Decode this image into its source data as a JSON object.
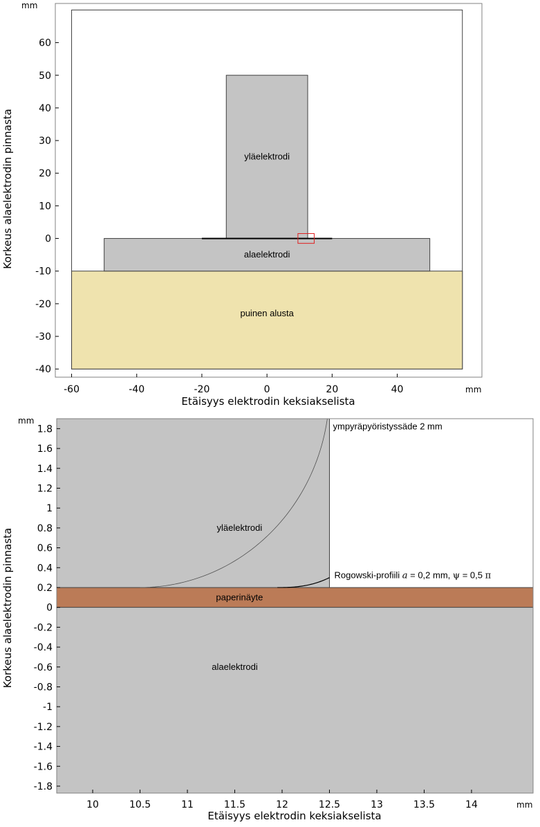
{
  "chart_data": [
    {
      "type": "diagram",
      "title": "",
      "x_unit": "mm",
      "y_unit": "mm",
      "xlabel": "Etäisyys elektrodin keksiakselista",
      "ylabel": "Korkeus alaelektrodin pinnasta",
      "xlim": [
        -65,
        66
      ],
      "ylim": [
        -42.5,
        72
      ],
      "x_ticks": [
        "-60",
        "-40",
        "-20",
        "0",
        "20",
        "40"
      ],
      "x_tick_values": [
        -60,
        -40,
        -20,
        0,
        20,
        40
      ],
      "y_ticks": [
        "60",
        "50",
        "40",
        "30",
        "20",
        "10",
        "0",
        "-10",
        "-20",
        "-30",
        "-40"
      ],
      "y_tick_values": [
        60,
        50,
        40,
        30,
        20,
        10,
        0,
        -10,
        -20,
        -30,
        -40
      ],
      "regions": {
        "domain": {
          "x": [
            -60,
            60
          ],
          "y": [
            -40,
            70
          ]
        },
        "upper_electrode": {
          "x": [
            -12.5,
            12.5
          ],
          "y": [
            0,
            50
          ]
        },
        "lower_electrode": {
          "x": [
            -50,
            50
          ],
          "y": [
            -10,
            0
          ]
        },
        "base": {
          "x": [
            -60,
            60
          ],
          "y": [
            -40,
            -10
          ]
        },
        "paper_line": {
          "x": [
            -20,
            20
          ],
          "y": 0
        },
        "zoom_box": {
          "x": [
            9.5,
            14.5
          ],
          "y": [
            -1.5,
            1.5
          ]
        }
      },
      "labels": {
        "upper_electrode": "yläelektrodi",
        "lower_electrode": "alaelektrodi",
        "base": "puinen alusta"
      },
      "colors": {
        "electrode": "#c4c4c4",
        "base": "#efe3ae",
        "zoom_box": "#e02020",
        "domain": "#ffffff"
      }
    },
    {
      "type": "diagram",
      "title": "",
      "x_unit": "mm",
      "y_unit": "mm",
      "xlabel": "Etäisyys elektrodin keksiakselista",
      "ylabel": "Korkeus alaelektrodin pinnasta",
      "xlim": [
        9.62,
        14.65
      ],
      "ylim": [
        -1.87,
        1.9
      ],
      "x_ticks": [
        "10",
        "10.5",
        "11",
        "11.5",
        "12",
        "12.5",
        "13",
        "13.5",
        "14"
      ],
      "x_tick_values": [
        10,
        10.5,
        11,
        11.5,
        12,
        12.5,
        13,
        13.5,
        14
      ],
      "y_ticks": [
        "1.8",
        "1.6",
        "1.4",
        "1.2",
        "1",
        "0.8",
        "0.6",
        "0.4",
        "0.2",
        "0",
        "-0.2",
        "-0.4",
        "-0.6",
        "-0.8",
        "-1",
        "-1.2",
        "-1.4",
        "-1.6",
        "-1.8"
      ],
      "y_tick_values": [
        1.8,
        1.6,
        1.4,
        1.2,
        1,
        0.8,
        0.6,
        0.4,
        0.2,
        0,
        -0.2,
        -0.4,
        -0.6,
        -0.8,
        -1,
        -1.2,
        -1.4,
        -1.6,
        -1.8
      ],
      "regions": {
        "upper_electrode_edge_x": 12.5,
        "paper": {
          "y": [
            0,
            0.2
          ]
        },
        "circle_radius": 2,
        "rogowski_a": 0.2
      },
      "labels": {
        "upper_electrode": "yläelektrodi",
        "paper": "paperinäyte",
        "lower_electrode": "alaelektrodi",
        "circle_annotation": "ympyräpyöristyssäde 2 mm",
        "rogowski_prefix": "Rogowski-profiili ",
        "rogowski_a_symbol": "a",
        "rogowski_a_value": " = 0,2 mm, ",
        "rogowski_psi_symbol": "ψ",
        "rogowski_psi_value": " = 0,5 ",
        "rogowski_pi_symbol": "π"
      },
      "colors": {
        "electrode": "#c4c4c4",
        "paper": "#bb7b57",
        "air": "#ffffff"
      }
    }
  ]
}
